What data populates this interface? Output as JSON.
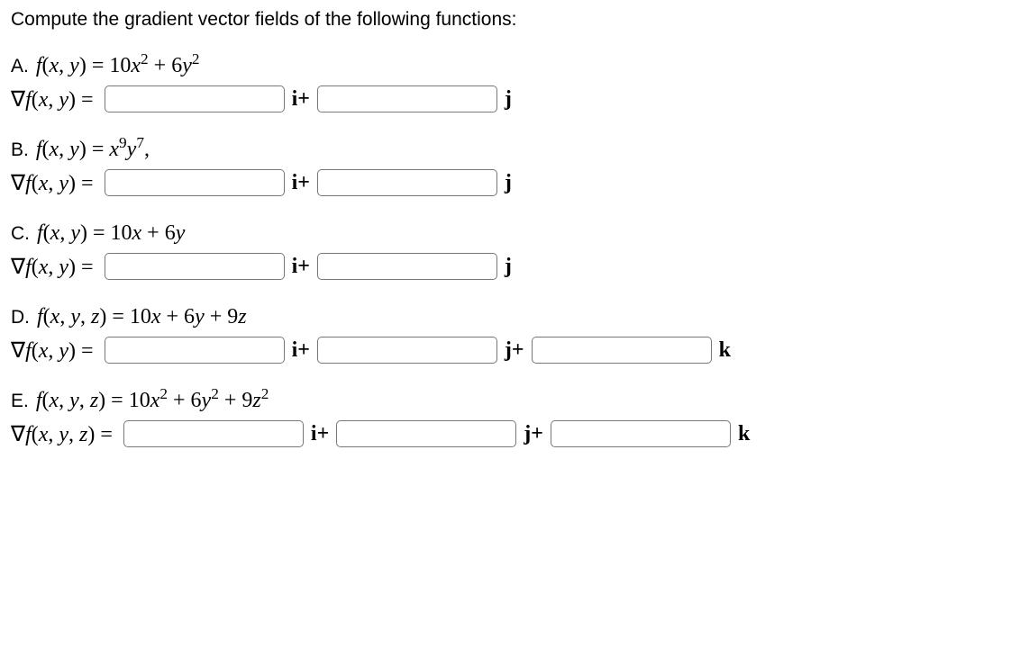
{
  "prompt": "Compute the gradient vector fields of the following functions:",
  "problems": {
    "A": {
      "label": "A.",
      "func_html": "<span class='mi'>f</span>(<span class='mi'>x</span>, <span class='mi'>y</span>) = 10<span class='mi'>x</span><sup>2</sup> + 6<span class='mi'>y</span><sup>2</sup>",
      "grad_html": "∇<span class='mi'>f</span>(<span class='mi'>x</span>, <span class='mi'>y</span>) =",
      "sep_i": "i+",
      "sep_j": "j"
    },
    "B": {
      "label": "B.",
      "func_html": "<span class='mi'>f</span>(<span class='mi'>x</span>, <span class='mi'>y</span>) = <span class='mi'>x</span><sup>9</sup><span class='mi'>y</span><sup>7</sup>,",
      "grad_html": "∇<span class='mi'>f</span>(<span class='mi'>x</span>, <span class='mi'>y</span>) =",
      "sep_i": "i+",
      "sep_j": "j"
    },
    "C": {
      "label": "C.",
      "func_html": "<span class='mi'>f</span>(<span class='mi'>x</span>, <span class='mi'>y</span>) = 10<span class='mi'>x</span> + 6<span class='mi'>y</span>",
      "grad_html": "∇<span class='mi'>f</span>(<span class='mi'>x</span>, <span class='mi'>y</span>) =",
      "sep_i": "i+",
      "sep_j": "j"
    },
    "D": {
      "label": "D.",
      "func_html": "<span class='mi'>f</span>(<span class='mi'>x</span>, <span class='mi'>y</span>, <span class='mi'>z</span>) = 10<span class='mi'>x</span> + 6<span class='mi'>y</span> + 9<span class='mi'>z</span>",
      "grad_html": "∇<span class='mi'>f</span>(<span class='mi'>x</span>, <span class='mi'>y</span>) =",
      "sep_i": "i+",
      "sep_j": "j+",
      "sep_k": "k"
    },
    "E": {
      "label": "E.",
      "func_html": "<span class='mi'>f</span>(<span class='mi'>x</span>, <span class='mi'>y</span>, <span class='mi'>z</span>) = 10<span class='mi'>x</span><sup>2</sup> + 6<span class='mi'>y</span><sup>2</sup> + 9<span class='mi'>z</span><sup>2</sup>",
      "grad_html": "∇<span class='mi'>f</span>(<span class='mi'>x</span>, <span class='mi'>y</span>, <span class='mi'>z</span>) =",
      "sep_i": "i+",
      "sep_j": "j+",
      "sep_k": "k"
    }
  }
}
